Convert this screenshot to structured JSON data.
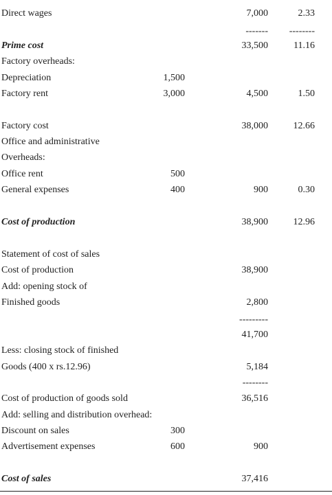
{
  "rows": [
    {
      "label": "Direct wages",
      "c3": "7,000",
      "c4": "2.33"
    },
    {
      "c3": "-------",
      "c4": "--------"
    },
    {
      "label": "Prime cost",
      "style": "bold-italic",
      "c3": "33,500",
      "c4": "11.16"
    },
    {
      "label": "Factory overheads:"
    },
    {
      "label": "Depreciation",
      "c2": "1,500"
    },
    {
      "label": "Factory rent",
      "c2": "3,000",
      "c3": "4,500",
      "c4": "1.50"
    },
    {
      "label": "Factory cost",
      "c3": "38,000",
      "c4": "12.66"
    },
    {
      "label": "Office and administrative"
    },
    {
      "label": "Overheads:"
    },
    {
      "label": "Office rent",
      "c2": "500"
    },
    {
      "label": "General expenses",
      "c2": "400",
      "c3": "900",
      "c4": "0.30"
    },
    {
      "label": "Cost of production",
      "style": "bold-italic",
      "c3": "38,900",
      "c4": "12.96"
    },
    {
      "label": "Statement of cost of sales"
    },
    {
      "label": "Cost of production",
      "c3": "38,900"
    },
    {
      "label": "Add: opening stock of"
    },
    {
      "label": "Finished goods",
      "c3": "2,800"
    },
    {
      "c3": "---------"
    },
    {
      "c3": "41,700"
    },
    {
      "label": "Less: closing stock of finished"
    },
    {
      "label": "Goods (400 x rs.12.96)",
      "c3": "5,184"
    },
    {
      "c3": "--------"
    },
    {
      "label": "Cost of production of goods sold",
      "c3": "36,516"
    },
    {
      "label": "Add: selling and distribution overhead:"
    },
    {
      "label": "Discount on sales",
      "c2": "300"
    },
    {
      "label": "Advertisement expenses",
      "c2": "600",
      "c3": "900"
    },
    {
      "label": "Cost of sales",
      "style": "bold-italic",
      "c3": "37,416"
    }
  ]
}
